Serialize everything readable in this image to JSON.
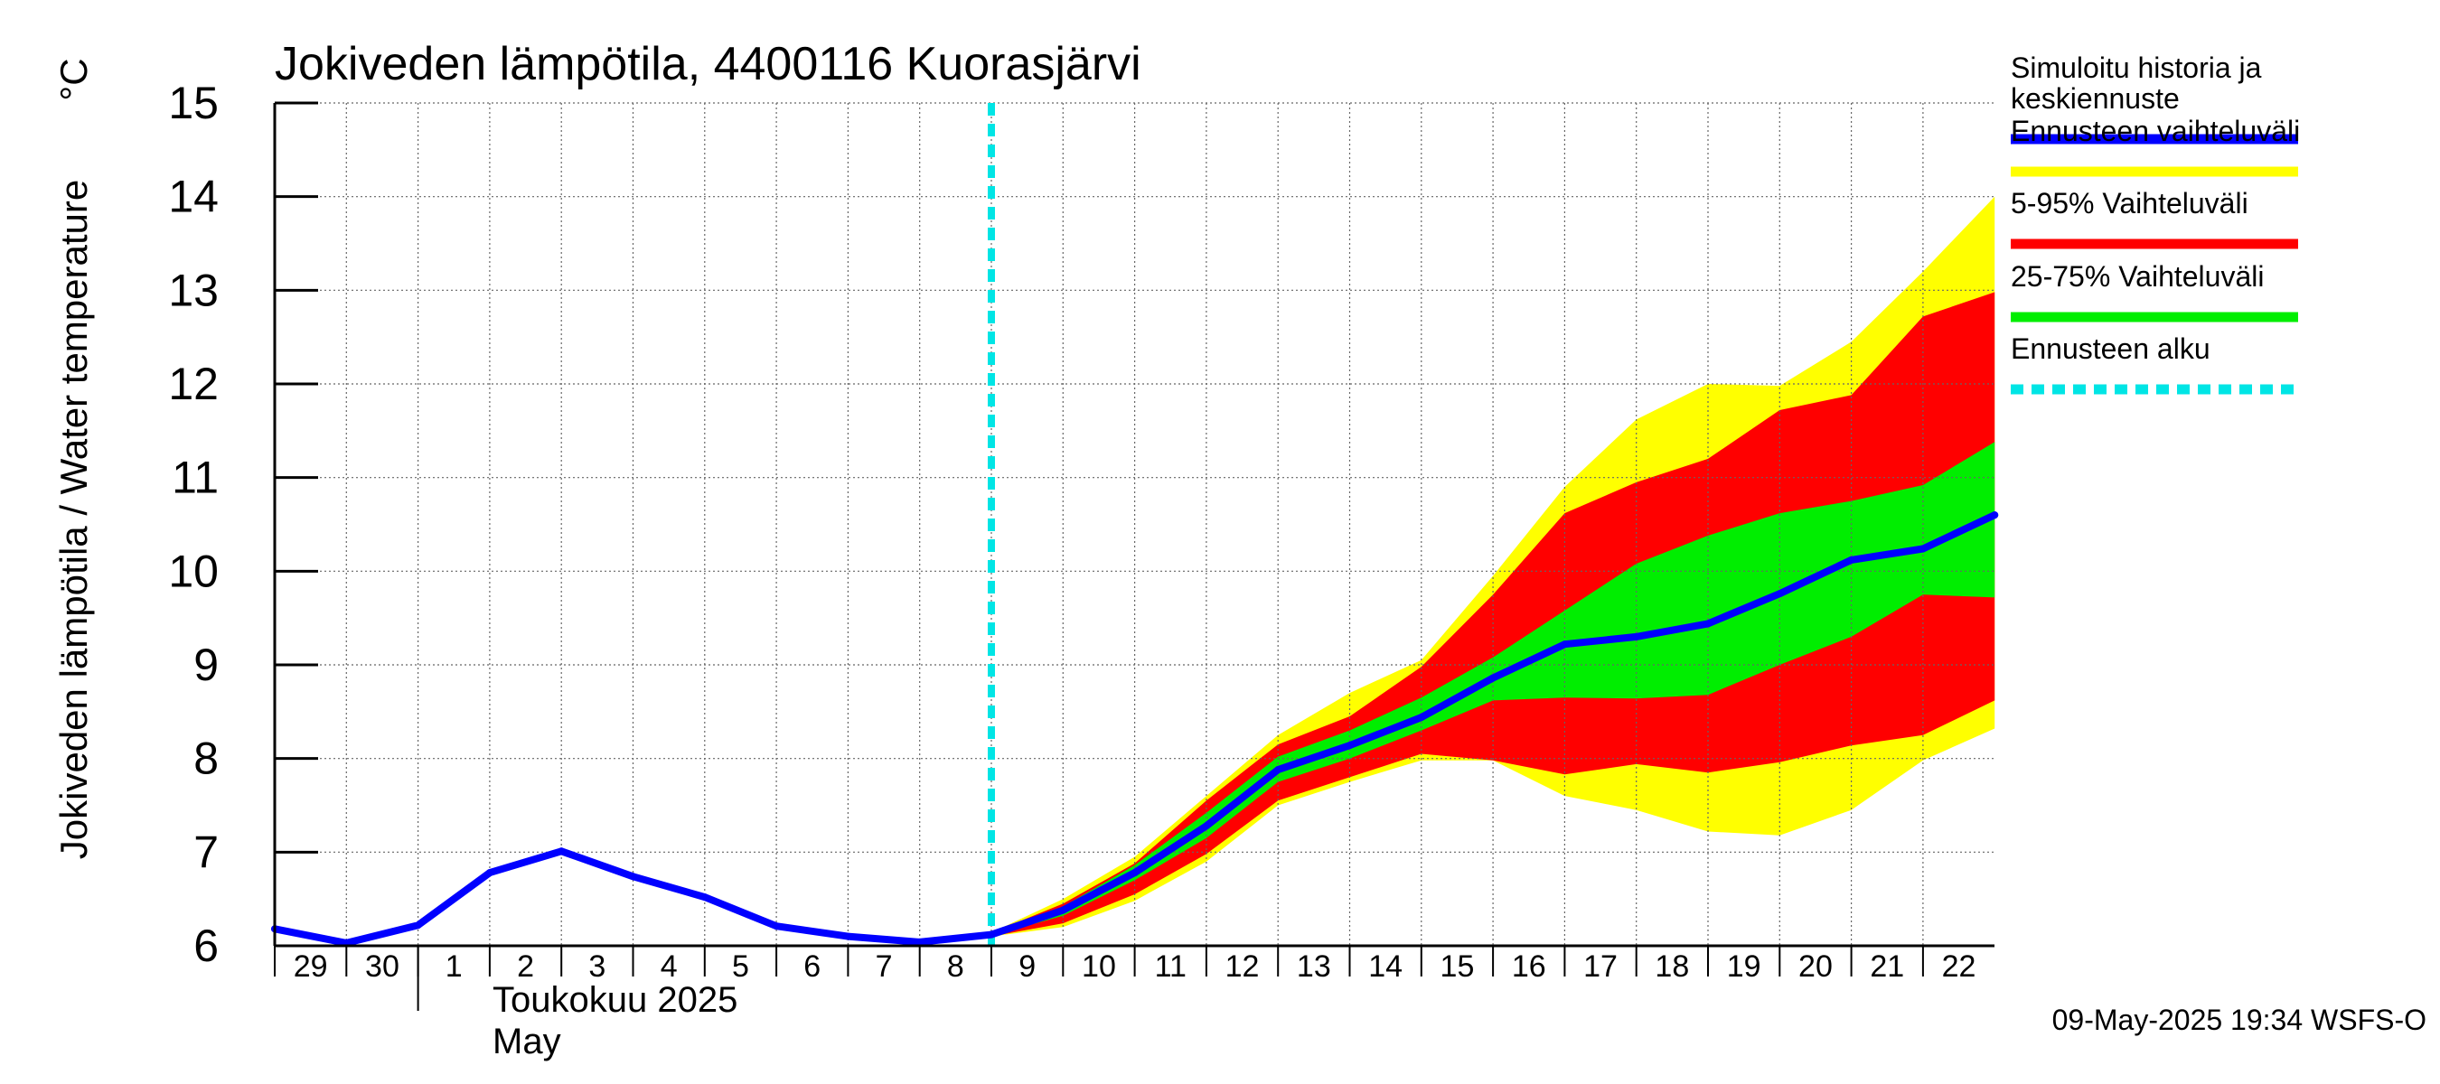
{
  "chart_data": {
    "type": "area",
    "title": "Jokiveden lämpötila, 4400116 Kuorasjärvi",
    "ylabel": "Jokiveden lämpötila / Water temperature",
    "yunit": "°C",
    "ylim": [
      6,
      15
    ],
    "yticks": [
      "6",
      "7",
      "8",
      "9",
      "10",
      "11",
      "12",
      "13",
      "14",
      "15"
    ],
    "xtick_labels": [
      "29",
      "30",
      "1",
      "2",
      "3",
      "4",
      "5",
      "6",
      "7",
      "8",
      "9",
      "10",
      "11",
      "12",
      "13",
      "14",
      "15",
      "16",
      "17",
      "18",
      "19",
      "20",
      "21",
      "22"
    ],
    "month_label": "Toukokuu  2025",
    "month_label_en": "May",
    "grid": true,
    "legend_position": "right",
    "forecast_start_index": 10,
    "x_index": [
      0,
      1,
      2,
      3,
      4,
      5,
      6,
      7,
      8,
      9,
      10,
      11,
      12,
      13,
      14,
      15,
      16,
      17,
      18,
      19,
      20,
      21,
      22,
      23,
      24
    ],
    "series": [
      {
        "name": "Simuloitu historia ja keskiennuste",
        "color": "#0000ff",
        "values": [
          6.18,
          6.03,
          6.22,
          6.78,
          7.01,
          6.74,
          6.52,
          6.21,
          6.1,
          6.04,
          6.12,
          6.38,
          6.78,
          7.28,
          7.88,
          8.14,
          8.44,
          8.86,
          9.22,
          9.3,
          9.44,
          9.76,
          10.12,
          10.24,
          10.6
        ]
      }
    ],
    "bands": [
      {
        "name": "Ennusteen vaihteluväli",
        "color": "#ffff00",
        "start_index": 10,
        "lower": [
          6.1,
          6.2,
          6.48,
          6.9,
          7.5,
          7.75,
          7.98,
          7.98,
          7.6,
          7.45,
          7.22,
          7.18,
          7.45,
          7.98,
          8.32
        ],
        "upper": [
          6.14,
          6.5,
          6.95,
          7.6,
          8.25,
          8.7,
          9.05,
          9.95,
          10.9,
          11.62,
          12.0,
          11.98,
          12.45,
          13.2,
          14.0
        ]
      },
      {
        "name": "5-95% Vaihteluväli",
        "color": "#ff0000",
        "start_index": 10,
        "lower": [
          6.1,
          6.24,
          6.55,
          6.98,
          7.55,
          7.8,
          8.05,
          7.98,
          7.83,
          7.94,
          7.85,
          7.96,
          8.14,
          8.25,
          8.62
        ],
        "upper": [
          6.14,
          6.45,
          6.88,
          7.55,
          8.15,
          8.45,
          8.98,
          9.75,
          10.62,
          10.95,
          11.2,
          11.72,
          11.88,
          12.72,
          12.98
        ]
      },
      {
        "name": "25-75% Vaihteluväli",
        "color": "#00ee00",
        "start_index": 10,
        "lower": [
          6.11,
          6.32,
          6.7,
          7.15,
          7.75,
          8.0,
          8.3,
          8.62,
          8.65,
          8.64,
          8.68,
          9.0,
          9.3,
          9.75,
          9.72
        ],
        "upper": [
          6.13,
          6.42,
          6.86,
          7.42,
          8.02,
          8.3,
          8.65,
          9.08,
          9.58,
          10.08,
          10.38,
          10.62,
          10.75,
          10.92,
          11.38
        ]
      }
    ],
    "legend": [
      {
        "label": "Simuloitu historia ja keskiennuste",
        "color": "#0000ff",
        "style": "solid"
      },
      {
        "label": "Ennusteen vaihteluväli",
        "color": "#ffff00",
        "style": "solid"
      },
      {
        "label": "5-95% Vaihteluväli",
        "color": "#ff0000",
        "style": "solid"
      },
      {
        "label": "25-75% Vaihteluväli",
        "color": "#00ee00",
        "style": "solid"
      },
      {
        "label": "Ennusteen alku",
        "color": "#00e5e5",
        "style": "dashed"
      }
    ],
    "timestamp": "09-May-2025 19:34 WSFS-O"
  }
}
